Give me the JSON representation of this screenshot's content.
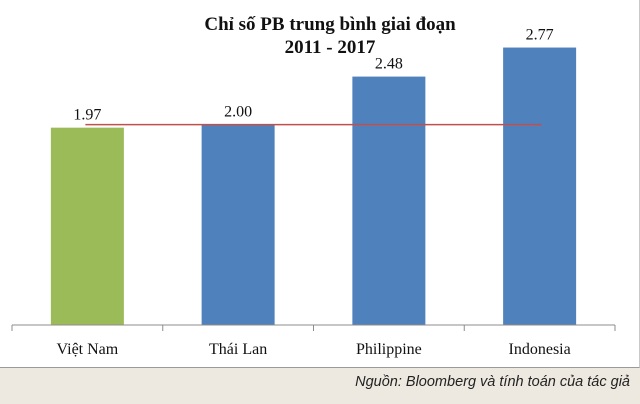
{
  "chart_data": {
    "type": "bar",
    "title_lines": [
      "Chỉ số PB trung bình giai đoạn",
      "2011 - 2017"
    ],
    "categories": [
      "Việt Nam",
      "Thái Lan",
      "Philippine",
      "Indonesia"
    ],
    "values": [
      1.97,
      2.0,
      2.48,
      2.77
    ],
    "value_labels": [
      "1.97",
      "2.00",
      "2.48",
      "2.77"
    ],
    "bar_colors": [
      "#9bbb59",
      "#4f81bd",
      "#4f81bd",
      "#4f81bd"
    ],
    "reference_line": {
      "value": 2.0,
      "color": "#c0504d"
    },
    "ylim": [
      0,
      3.0
    ],
    "grid": false,
    "xlabel": "",
    "ylabel": ""
  },
  "source": "Nguồn: Bloomberg và tính toán của tác giả"
}
